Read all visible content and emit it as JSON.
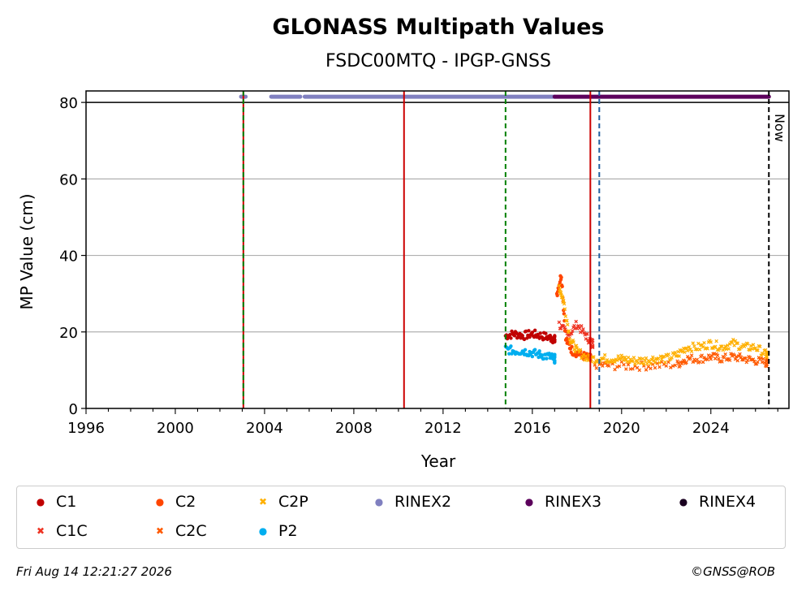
{
  "chart_data": {
    "type": "scatter",
    "title": "GLONASS Multipath Values",
    "subtitle": "FSDC00MTQ - IPGP-GNSS",
    "xlabel": "Year",
    "ylabel": "MP Value (cm)",
    "xlim": [
      1996,
      2027.5
    ],
    "ylim": [
      0,
      83
    ],
    "x_ticks": [
      "1996",
      "2000",
      "2004",
      "2008",
      "2012",
      "2016",
      "2020",
      "2024"
    ],
    "y_ticks": [
      "0",
      "20",
      "40",
      "60",
      "80"
    ],
    "grid": "horizontal",
    "now_label": "Now",
    "series": [
      {
        "name": "C1",
        "color": "#c00000",
        "marker": "dot",
        "points": [
          [
            2014.8,
            19
          ],
          [
            2015.2,
            19.5
          ],
          [
            2015.6,
            19
          ],
          [
            2016.0,
            19.5
          ],
          [
            2016.4,
            19
          ],
          [
            2016.8,
            18.5
          ],
          [
            2017.0,
            18
          ]
        ]
      },
      {
        "name": "C1C",
        "color": "#ee3322",
        "marker": "x",
        "points": [
          [
            2017.2,
            22
          ],
          [
            2017.6,
            19
          ],
          [
            2018.0,
            22
          ],
          [
            2018.4,
            19
          ],
          [
            2018.7,
            17
          ]
        ]
      },
      {
        "name": "C2",
        "color": "#ff4500",
        "marker": "dot",
        "points": [
          [
            2017.1,
            30
          ],
          [
            2017.3,
            35
          ],
          [
            2017.5,
            18
          ],
          [
            2017.8,
            15
          ],
          [
            2018.2,
            14
          ],
          [
            2018.6,
            13
          ]
        ]
      },
      {
        "name": "C2C",
        "color": "#ff5a00",
        "marker": "x",
        "points": [
          [
            2018.8,
            11.5
          ],
          [
            2019.5,
            11.2
          ],
          [
            2020.5,
            11
          ],
          [
            2021.5,
            11.2
          ],
          [
            2022.5,
            11.5
          ],
          [
            2022.9,
            13
          ],
          [
            2023.5,
            13
          ],
          [
            2024.0,
            13.5
          ],
          [
            2024.5,
            13
          ],
          [
            2025.0,
            13.5
          ],
          [
            2025.5,
            13
          ],
          [
            2026.0,
            12.5
          ],
          [
            2026.5,
            12
          ]
        ]
      },
      {
        "name": "C2P",
        "color": "#ffb000",
        "marker": "x",
        "points": [
          [
            2017.2,
            32
          ],
          [
            2017.4,
            28
          ],
          [
            2017.7,
            18
          ],
          [
            2018.0,
            15
          ],
          [
            2018.5,
            13
          ],
          [
            2019.0,
            13
          ],
          [
            2019.5,
            13
          ],
          [
            2020.0,
            13
          ],
          [
            2020.5,
            12.5
          ],
          [
            2021.0,
            12.5
          ],
          [
            2021.5,
            13
          ],
          [
            2022.0,
            13
          ],
          [
            2022.5,
            14
          ],
          [
            2022.9,
            16
          ],
          [
            2023.5,
            16
          ],
          [
            2024.0,
            17
          ],
          [
            2024.5,
            16
          ],
          [
            2025.0,
            17
          ],
          [
            2025.5,
            16
          ],
          [
            2026.0,
            16
          ],
          [
            2026.5,
            14
          ]
        ]
      },
      {
        "name": "P2",
        "color": "#00aeef",
        "marker": "dot",
        "points": [
          [
            2014.8,
            15.5
          ],
          [
            2015.2,
            15
          ],
          [
            2015.6,
            15
          ],
          [
            2016.0,
            14.5
          ],
          [
            2016.4,
            14
          ],
          [
            2016.8,
            13.5
          ],
          [
            2017.0,
            13
          ]
        ]
      }
    ],
    "rinex_bars": [
      {
        "name": "RINEX2",
        "color": "#8080c0",
        "y": 81.5,
        "ranges": [
          [
            2002.95,
            2003.15
          ],
          [
            2004.3,
            2005.6
          ],
          [
            2005.8,
            2017.0
          ]
        ]
      },
      {
        "name": "RINEX3",
        "color": "#5c005c",
        "y": 81.5,
        "ranges": [
          [
            2017.0,
            2026.6
          ]
        ]
      },
      {
        "name": "RINEX4",
        "color": "#1a0020",
        "y": 81.5,
        "ranges": []
      }
    ],
    "vertical_lines": [
      {
        "x": 2003.05,
        "color": "#cc0000",
        "style": "solid"
      },
      {
        "x": 2003.05,
        "color": "#008000",
        "style": "dashed"
      },
      {
        "x": 2010.25,
        "color": "#cc0000",
        "style": "solid"
      },
      {
        "x": 2014.8,
        "color": "#008000",
        "style": "dashed"
      },
      {
        "x": 2018.6,
        "color": "#cc0000",
        "style": "solid"
      },
      {
        "x": 2019.0,
        "color": "#1f5fa0",
        "style": "dashed"
      },
      {
        "x": 2026.6,
        "color": "#000000",
        "style": "dashed"
      }
    ],
    "legend": [
      {
        "name": "C1",
        "color": "#c00000",
        "glyph": "●"
      },
      {
        "name": "C2",
        "color": "#ff4500",
        "glyph": "●"
      },
      {
        "name": "C2P",
        "color": "#ffb000",
        "glyph": "✖"
      },
      {
        "name": "RINEX2",
        "color": "#8080c0",
        "glyph": "●"
      },
      {
        "name": "RINEX3",
        "color": "#5c005c",
        "glyph": "●"
      },
      {
        "name": "RINEX4",
        "color": "#1a0020",
        "glyph": "●"
      },
      {
        "name": "C1C",
        "color": "#ee3322",
        "glyph": "✖"
      },
      {
        "name": "C2C",
        "color": "#ff5a00",
        "glyph": "✖"
      },
      {
        "name": "P2",
        "color": "#00aeef",
        "glyph": "●"
      }
    ]
  },
  "footer": {
    "timestamp": "Fri Aug 14 12:21:27 2026",
    "credit": "©GNSS@ROB"
  }
}
